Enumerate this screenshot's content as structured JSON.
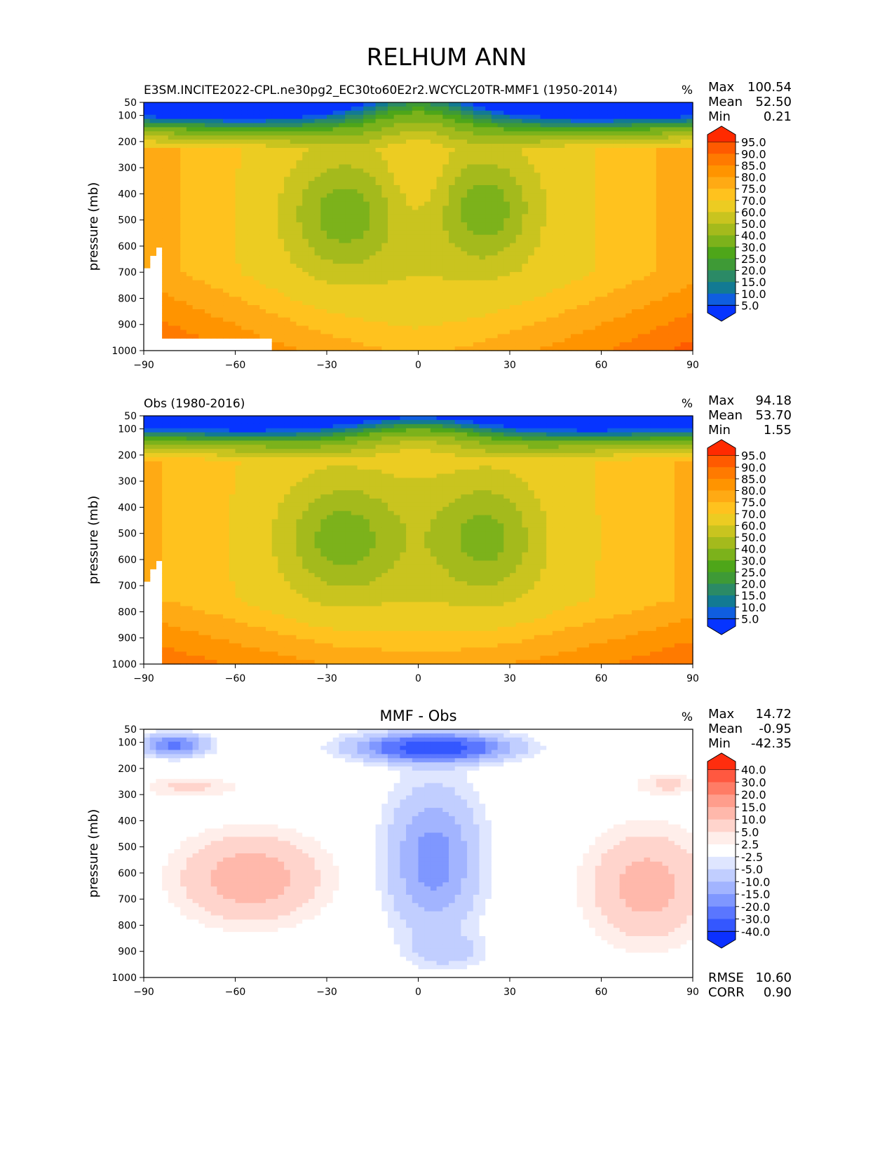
{
  "figure_title": "RELHUM ANN",
  "panels": [
    {
      "title_left": "E3SM.INCITE2022-CPL.ne30pg2_EC30to60E2r2.WCYCL20TR-MMF1 (1950-2014)",
      "title_center": "",
      "units": "%",
      "ylabel": "pressure (mb)",
      "stats": [
        {
          "label": "Max",
          "value": "100.54"
        },
        {
          "label": "Mean",
          "value": "52.50"
        },
        {
          "label": "Min",
          "value": "0.21"
        }
      ],
      "extra_stats": [],
      "colorbar_labels": [
        "95.0",
        "90.0",
        "85.0",
        "80.0",
        "75.0",
        "70.0",
        "60.0",
        "50.0",
        "40.0",
        "30.0",
        "25.0",
        "20.0",
        "15.0",
        "10.0",
        "5.0"
      ],
      "colorbar_colors": [
        "#ff2a00",
        "#ff5a00",
        "#ff7a00",
        "#ff9400",
        "#ffaa14",
        "#ffc21e",
        "#eccc22",
        "#c9c41f",
        "#a4ba1c",
        "#7cb21b",
        "#4ea619",
        "#3e9a36",
        "#2b8a66",
        "#127a93",
        "#0f5ee0",
        "#0634ff"
      ],
      "colorbar_kind": "sequential"
    },
    {
      "title_left": "Obs (1980-2016)",
      "title_center": "",
      "units": "%",
      "ylabel": "pressure (mb)",
      "stats": [
        {
          "label": "Max",
          "value": "94.18"
        },
        {
          "label": "Mean",
          "value": "53.70"
        },
        {
          "label": "Min",
          "value": "1.55"
        }
      ],
      "extra_stats": [],
      "colorbar_labels": [
        "95.0",
        "90.0",
        "85.0",
        "80.0",
        "75.0",
        "70.0",
        "60.0",
        "50.0",
        "40.0",
        "30.0",
        "25.0",
        "20.0",
        "15.0",
        "10.0",
        "5.0"
      ],
      "colorbar_colors": [
        "#ff2a00",
        "#ff5a00",
        "#ff7a00",
        "#ff9400",
        "#ffaa14",
        "#ffc21e",
        "#eccc22",
        "#c9c41f",
        "#a4ba1c",
        "#7cb21b",
        "#4ea619",
        "#3e9a36",
        "#2b8a66",
        "#127a93",
        "#0f5ee0",
        "#0634ff"
      ],
      "colorbar_kind": "sequential"
    },
    {
      "title_left": "",
      "title_center": "MMF - Obs",
      "units": "%",
      "ylabel": "pressure (mb)",
      "stats": [
        {
          "label": "Max",
          "value": "14.72"
        },
        {
          "label": "Mean",
          "value": "-0.95"
        },
        {
          "label": "Min",
          "value": "-42.35"
        }
      ],
      "extra_stats": [
        {
          "label": "RMSE",
          "value": "10.60"
        },
        {
          "label": "CORR",
          "value": "0.90"
        }
      ],
      "colorbar_labels": [
        "40.0",
        "30.0",
        "20.0",
        "15.0",
        "10.0",
        "5.0",
        "2.5",
        "-2.5",
        "-5.0",
        "-10.0",
        "-15.0",
        "-20.0",
        "-30.0",
        "-40.0"
      ],
      "colorbar_colors": [
        "#ff2d0e",
        "#ff5840",
        "#ff7c66",
        "#ff9d8c",
        "#ffb8ab",
        "#ffd4cc",
        "#ffeeea",
        "#ffffff",
        "#dfe6ff",
        "#c1ceff",
        "#a2b4ff",
        "#7f97ff",
        "#5a76ff",
        "#3457ff",
        "#0b30ff"
      ],
      "colorbar_kind": "diverging"
    }
  ],
  "chart_data": [
    {
      "type": "heatmap",
      "title": "E3SM.INCITE2022-CPL.ne30pg2_EC30to60E2r2.WCYCL20TR-MMF1 (1950-2014)",
      "ylabel": "pressure (mb)",
      "x_ticks": [
        -90,
        -60,
        -30,
        0,
        30,
        60,
        90
      ],
      "y_ticks": [
        50,
        100,
        200,
        300,
        400,
        500,
        600,
        700,
        800,
        900,
        1000
      ],
      "xlim": [
        -90,
        90
      ],
      "ylim": [
        1000,
        50
      ],
      "levels": [
        5,
        10,
        15,
        20,
        25,
        30,
        40,
        50,
        60,
        70,
        75,
        80,
        85,
        90,
        95
      ],
      "max": 100.54,
      "mean": 52.5,
      "min": 0.21
    },
    {
      "type": "heatmap",
      "title": "Obs (1980-2016)",
      "ylabel": "pressure (mb)",
      "x_ticks": [
        -90,
        -60,
        -30,
        0,
        30,
        60,
        90
      ],
      "y_ticks": [
        50,
        100,
        200,
        300,
        400,
        500,
        600,
        700,
        800,
        900,
        1000
      ],
      "xlim": [
        -90,
        90
      ],
      "ylim": [
        1000,
        50
      ],
      "levels": [
        5,
        10,
        15,
        20,
        25,
        30,
        40,
        50,
        60,
        70,
        75,
        80,
        85,
        90,
        95
      ],
      "max": 94.18,
      "mean": 53.7,
      "min": 1.55
    },
    {
      "type": "heatmap",
      "title": "MMF - Obs",
      "ylabel": "pressure (mb)",
      "x_ticks": [
        -90,
        -60,
        -30,
        0,
        30,
        60,
        90
      ],
      "y_ticks": [
        50,
        100,
        200,
        300,
        400,
        500,
        600,
        700,
        800,
        900,
        1000
      ],
      "xlim": [
        -90,
        90
      ],
      "ylim": [
        1000,
        50
      ],
      "levels": [
        -40,
        -30,
        -20,
        -15,
        -10,
        -5,
        -2.5,
        2.5,
        5,
        10,
        15,
        20,
        30,
        40
      ],
      "max": 14.72,
      "mean": -0.95,
      "min": -42.35,
      "rmse": 10.6,
      "corr": 0.9
    }
  ]
}
